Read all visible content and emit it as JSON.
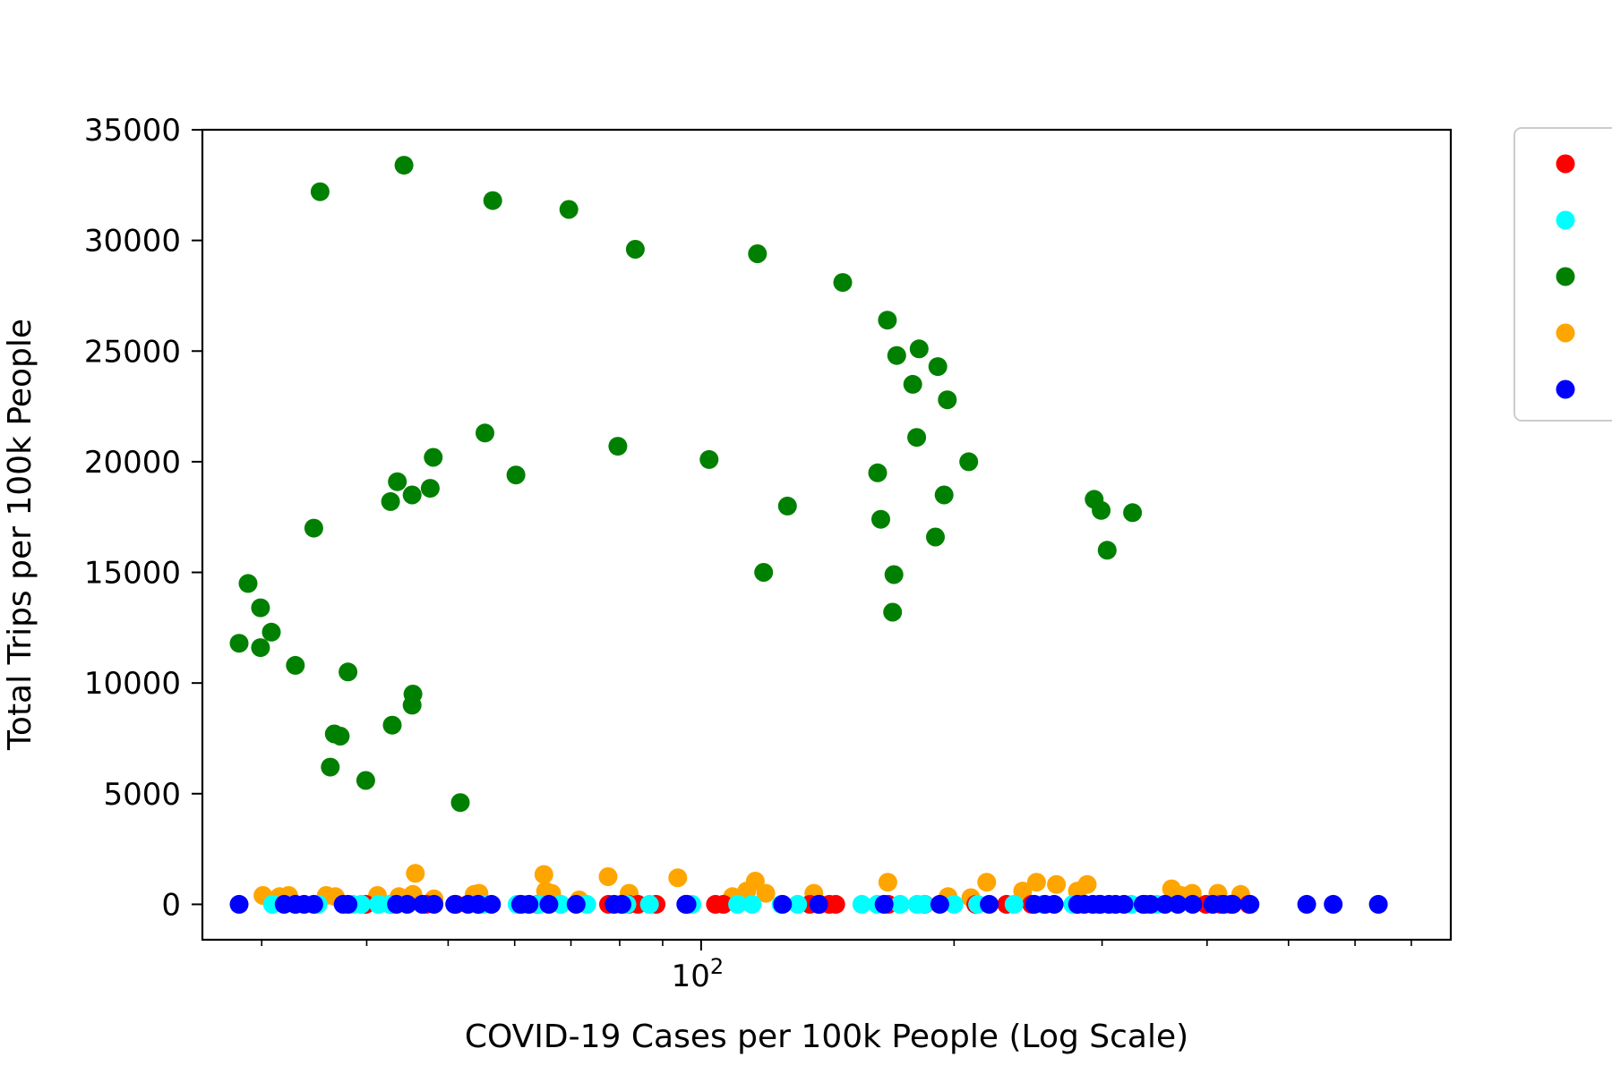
{
  "chart_data": {
    "type": "scatter",
    "xscale": "log",
    "xlabel": "COVID-19 Cases per 100k People (Log Scale)",
    "ylabel": "Total Trips per 100k People",
    "xlim": [
      25.5,
      780
    ],
    "ylim": [
      -1600,
      35000
    ],
    "yticks": [
      0,
      5000,
      10000,
      15000,
      20000,
      25000,
      30000,
      35000
    ],
    "xticks_major": [
      {
        "value": 100,
        "label": "10",
        "exp": "2"
      }
    ],
    "xticks_minor": [
      30,
      40,
      50,
      60,
      70,
      80,
      90,
      200,
      300,
      400,
      500,
      600,
      700
    ],
    "legend": {
      "position": "right",
      "entries": [
        {
          "color": "#ff0000"
        },
        {
          "color": "#00ffff"
        },
        {
          "color": "#008000"
        },
        {
          "color": "#ffa500"
        },
        {
          "color": "#0000ff"
        }
      ]
    },
    "series": [
      {
        "color": "#008000",
        "points": [
          [
            28.2,
            11800
          ],
          [
            28.9,
            14500
          ],
          [
            29.9,
            13400
          ],
          [
            29.9,
            11600
          ],
          [
            30.8,
            12300
          ],
          [
            32.9,
            10800
          ],
          [
            34.6,
            17000
          ],
          [
            35.2,
            32200
          ],
          [
            36.2,
            6200
          ],
          [
            36.6,
            7700
          ],
          [
            37.2,
            7600
          ],
          [
            38.0,
            10500
          ],
          [
            39.9,
            5600
          ],
          [
            42.7,
            18200
          ],
          [
            42.9,
            8100
          ],
          [
            43.5,
            19100
          ],
          [
            44.3,
            33400
          ],
          [
            45.3,
            18500
          ],
          [
            45.3,
            9000
          ],
          [
            45.4,
            9500
          ],
          [
            47.6,
            18800
          ],
          [
            48.0,
            20200
          ],
          [
            51.7,
            4600
          ],
          [
            55.3,
            21300
          ],
          [
            56.5,
            31800
          ],
          [
            60.2,
            19400
          ],
          [
            69.6,
            31400
          ],
          [
            79.6,
            20700
          ],
          [
            83.5,
            29600
          ],
          [
            102.2,
            20100
          ],
          [
            116.7,
            29400
          ],
          [
            118.7,
            15000
          ],
          [
            126.7,
            18000
          ],
          [
            147.4,
            28100
          ],
          [
            162.2,
            19500
          ],
          [
            163.6,
            17400
          ],
          [
            166.6,
            26400
          ],
          [
            169.0,
            13200
          ],
          [
            169.6,
            14900
          ],
          [
            170.9,
            24800
          ],
          [
            178.6,
            23500
          ],
          [
            180.5,
            21100
          ],
          [
            181.7,
            25100
          ],
          [
            191.3,
            24300
          ],
          [
            194.6,
            18500
          ],
          [
            196.3,
            22800
          ],
          [
            190.0,
            16600
          ],
          [
            208.2,
            20000
          ],
          [
            293.6,
            18300
          ],
          [
            299.3,
            17800
          ],
          [
            304.2,
            16000
          ],
          [
            326.1,
            17700
          ]
        ]
      },
      {
        "color": "#ffa500",
        "points": [
          [
            30.1,
            400
          ],
          [
            31.5,
            350
          ],
          [
            32.3,
            400
          ],
          [
            35.8,
            400
          ],
          [
            36.7,
            350
          ],
          [
            41.2,
            400
          ],
          [
            43.7,
            350
          ],
          [
            45.4,
            450
          ],
          [
            45.7,
            1400
          ],
          [
            48.1,
            250
          ],
          [
            53.7,
            450
          ],
          [
            54.4,
            500
          ],
          [
            65.0,
            1350
          ],
          [
            65.3,
            600
          ],
          [
            66.4,
            500
          ],
          [
            71.6,
            200
          ],
          [
            77.5,
            1250
          ],
          [
            82.1,
            500
          ],
          [
            93.8,
            1200
          ],
          [
            109.0,
            350
          ],
          [
            113.3,
            600
          ],
          [
            116.0,
            1050
          ],
          [
            119.4,
            500
          ],
          [
            136.2,
            500
          ],
          [
            166.8,
            1000
          ],
          [
            196.7,
            350
          ],
          [
            209.4,
            300
          ],
          [
            218.7,
            1000
          ],
          [
            241.3,
            600
          ],
          [
            250.7,
            1000
          ],
          [
            264.7,
            900
          ],
          [
            280.4,
            600
          ],
          [
            288.0,
            900
          ],
          [
            362.9,
            700
          ],
          [
            372.6,
            400
          ],
          [
            384.1,
            500
          ],
          [
            412.0,
            500
          ],
          [
            438.6,
            450
          ]
        ]
      },
      {
        "color": "#ff0000",
        "points": [
          [
            39.9,
            0
          ],
          [
            42.7,
            0
          ],
          [
            47.1,
            0
          ],
          [
            51.1,
            0
          ],
          [
            54.3,
            0
          ],
          [
            63.9,
            0
          ],
          [
            77.6,
            0
          ],
          [
            82.0,
            0
          ],
          [
            84.1,
            0
          ],
          [
            88.4,
            0
          ],
          [
            104.0,
            0
          ],
          [
            106.3,
            0
          ],
          [
            134.7,
            0
          ],
          [
            138.4,
            0
          ],
          [
            142.1,
            0
          ],
          [
            144.6,
            0
          ],
          [
            167.0,
            0
          ],
          [
            184.5,
            0
          ],
          [
            212.2,
            0
          ],
          [
            230.9,
            0
          ],
          [
            247.3,
            0
          ],
          [
            280.1,
            0
          ],
          [
            297.4,
            0
          ],
          [
            338.0,
            0
          ],
          [
            398.9,
            0
          ],
          [
            415.0,
            0
          ],
          [
            426.6,
            0
          ],
          [
            448.5,
            0
          ]
        ]
      },
      {
        "color": "#00ffff",
        "points": [
          [
            30.9,
            0
          ],
          [
            32.9,
            0
          ],
          [
            35.0,
            0
          ],
          [
            38.5,
            0
          ],
          [
            39.4,
            0
          ],
          [
            41.3,
            0
          ],
          [
            42.6,
            0
          ],
          [
            55.0,
            0
          ],
          [
            60.4,
            0
          ],
          [
            61.5,
            0
          ],
          [
            64.1,
            0
          ],
          [
            68.1,
            0
          ],
          [
            73.1,
            0
          ],
          [
            80.3,
            0
          ],
          [
            81.6,
            0
          ],
          [
            86.8,
            0
          ],
          [
            97.5,
            0
          ],
          [
            110.5,
            0
          ],
          [
            115.0,
            0
          ],
          [
            124.5,
            0
          ],
          [
            130.3,
            0
          ],
          [
            155.3,
            0
          ],
          [
            162.0,
            0
          ],
          [
            172.5,
            0
          ],
          [
            180.7,
            0
          ],
          [
            184.3,
            0
          ],
          [
            199.9,
            0
          ],
          [
            213.3,
            0
          ],
          [
            235.7,
            0
          ],
          [
            255.3,
            0
          ],
          [
            276.9,
            0
          ],
          [
            325.0,
            0
          ],
          [
            348.5,
            0
          ]
        ]
      },
      {
        "color": "#0000ff",
        "points": [
          [
            28.2,
            0
          ],
          [
            31.9,
            0
          ],
          [
            32.9,
            0
          ],
          [
            33.7,
            0
          ],
          [
            34.6,
            0
          ],
          [
            37.5,
            0
          ],
          [
            38.0,
            0
          ],
          [
            43.4,
            0
          ],
          [
            44.7,
            0
          ],
          [
            46.6,
            0
          ],
          [
            48.1,
            0
          ],
          [
            50.9,
            0
          ],
          [
            52.8,
            0
          ],
          [
            54.3,
            0
          ],
          [
            56.3,
            0
          ],
          [
            61.0,
            0
          ],
          [
            62.4,
            0
          ],
          [
            65.9,
            0
          ],
          [
            71.0,
            0
          ],
          [
            78.8,
            0
          ],
          [
            80.5,
            0
          ],
          [
            95.9,
            0
          ],
          [
            96.2,
            0
          ],
          [
            125.0,
            0
          ],
          [
            138.0,
            0
          ],
          [
            165.1,
            0
          ],
          [
            192.3,
            0
          ],
          [
            220.2,
            0
          ],
          [
            249.2,
            0
          ],
          [
            256.6,
            0
          ],
          [
            263.1,
            0
          ],
          [
            280.5,
            0
          ],
          [
            285.8,
            0
          ],
          [
            292.5,
            0
          ],
          [
            298.6,
            0
          ],
          [
            305.7,
            0
          ],
          [
            311.3,
            0
          ],
          [
            318.6,
            0
          ],
          [
            335.8,
            0
          ],
          [
            342.6,
            0
          ],
          [
            356.5,
            0
          ],
          [
            369.2,
            0
          ],
          [
            384.6,
            0
          ],
          [
            406.3,
            0
          ],
          [
            418.6,
            0
          ],
          [
            429.0,
            0
          ],
          [
            450.0,
            0
          ],
          [
            525.6,
            0
          ],
          [
            565.1,
            0
          ],
          [
            639.6,
            0
          ]
        ]
      }
    ]
  }
}
